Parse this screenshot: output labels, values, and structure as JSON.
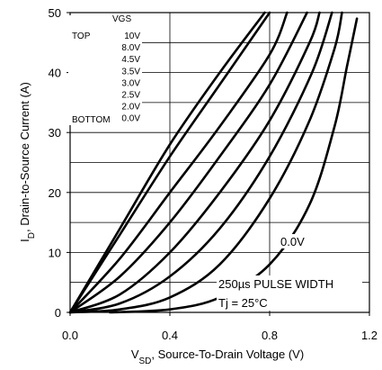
{
  "chart_data": {
    "type": "line",
    "title": "",
    "xlabel": {
      "main": "V",
      "sub": "SD",
      "rest": ", Source-To-Drain Voltage (V)"
    },
    "ylabel": {
      "main": "I",
      "sub": "D",
      "rest": ", Drain-to-Source Current (A)"
    },
    "xlim": [
      0,
      1.2
    ],
    "ylim": [
      0,
      50
    ],
    "x_ticks": [
      "0.0",
      "0.4",
      "0.8",
      "1.2"
    ],
    "y_ticks": [
      "0",
      "10",
      "20",
      "30",
      "40",
      "50"
    ],
    "x_grid": [
      0.4,
      0.8
    ],
    "y_grid_major": [
      10,
      20,
      30,
      40
    ],
    "y_grid_minor": [
      5,
      15,
      25,
      35,
      45
    ],
    "grid": true,
    "legend": {
      "header": "VGS",
      "top_label": "TOP",
      "bottom_label": "BOTTOM",
      "entries": [
        "10V",
        "8.0V",
        "4.5V",
        "3.5V",
        "3.0V",
        "2.5V",
        "2.0V",
        "0.0V"
      ]
    },
    "annotations": {
      "curve_label": "0.0V",
      "pulse": "250µs PULSE WIDTH",
      "tj": "Tj = 25°C"
    },
    "series": [
      {
        "name": "10V",
        "points": [
          [
            0,
            0
          ],
          [
            0.2,
            14
          ],
          [
            0.4,
            28
          ],
          [
            0.6,
            40
          ],
          [
            0.78,
            50
          ]
        ]
      },
      {
        "name": "8.0V",
        "points": [
          [
            0,
            0
          ],
          [
            0.2,
            13
          ],
          [
            0.4,
            26
          ],
          [
            0.6,
            38
          ],
          [
            0.8,
            50
          ]
        ]
      },
      {
        "name": "4.5V",
        "points": [
          [
            0,
            0
          ],
          [
            0.2,
            9
          ],
          [
            0.4,
            20
          ],
          [
            0.6,
            31
          ],
          [
            0.8,
            43
          ],
          [
            0.87,
            50
          ]
        ]
      },
      {
        "name": "3.5V",
        "points": [
          [
            0,
            0
          ],
          [
            0.2,
            6
          ],
          [
            0.4,
            15
          ],
          [
            0.6,
            26
          ],
          [
            0.8,
            38
          ],
          [
            0.95,
            50
          ]
        ]
      },
      {
        "name": "3.0V",
        "points": [
          [
            0,
            0
          ],
          [
            0.2,
            3
          ],
          [
            0.4,
            10
          ],
          [
            0.6,
            20
          ],
          [
            0.8,
            32
          ],
          [
            0.96,
            45
          ],
          [
            1.0,
            50
          ]
        ]
      },
      {
        "name": "2.5V",
        "points": [
          [
            0,
            0
          ],
          [
            0.2,
            1.5
          ],
          [
            0.4,
            6
          ],
          [
            0.6,
            14
          ],
          [
            0.8,
            26
          ],
          [
            0.97,
            40
          ],
          [
            1.05,
            50
          ]
        ]
      },
      {
        "name": "2.0V",
        "points": [
          [
            0,
            0
          ],
          [
            0.2,
            0.5
          ],
          [
            0.4,
            2.5
          ],
          [
            0.6,
            8
          ],
          [
            0.8,
            19
          ],
          [
            0.96,
            32
          ],
          [
            1.06,
            44
          ],
          [
            1.09,
            50
          ]
        ]
      },
      {
        "name": "0.0V",
        "points": [
          [
            0.16,
            0
          ],
          [
            0.4,
            0.5
          ],
          [
            0.6,
            2.5
          ],
          [
            0.8,
            8
          ],
          [
            0.96,
            18
          ],
          [
            1.06,
            31
          ],
          [
            1.11,
            41
          ],
          [
            1.15,
            49
          ]
        ]
      }
    ]
  }
}
